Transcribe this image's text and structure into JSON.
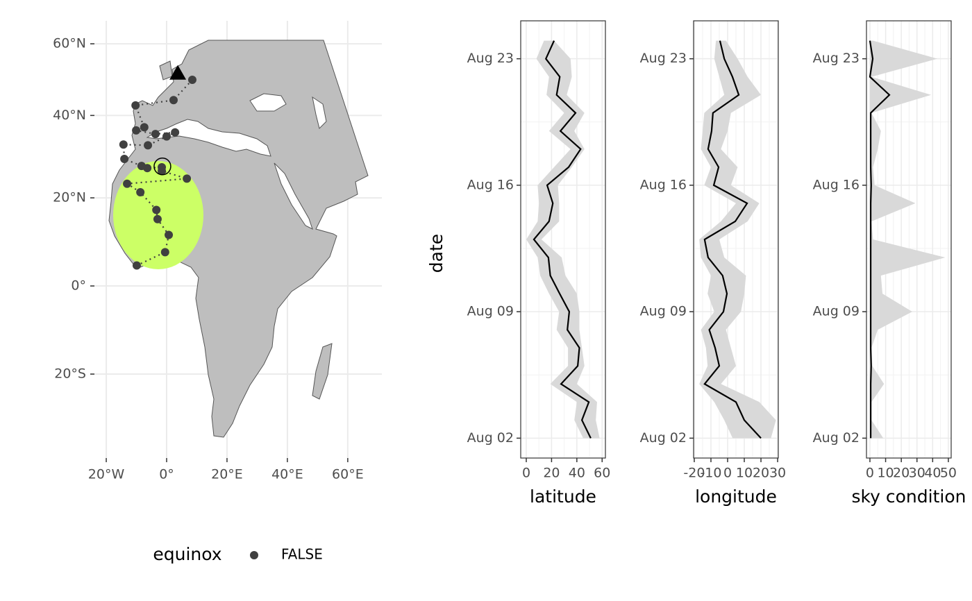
{
  "chart_data": [
    {
      "type": "map",
      "legend_title": "equinox",
      "series": [
        {
          "name": "FALSE",
          "color": "#404040",
          "x": [
            8.5,
            2.3,
            -10.3,
            -7.4,
            -10.1,
            -3.7,
            2.8,
            0,
            -6.2,
            -14.3,
            -14,
            -8.3,
            -6.4,
            -1.6,
            -1.6,
            6.7,
            -13.1,
            -8.7,
            -3.4,
            -3,
            0.7,
            -0.5,
            -9.9
          ],
          "y": [
            49.5,
            44,
            42.6,
            37,
            36.2,
            35.3,
            35.7,
            34.7,
            32.5,
            32.7,
            29.2,
            27.5,
            27,
            27.2,
            26.3,
            24.5,
            23.3,
            21.3,
            17.2,
            15.1,
            11.5,
            7.6,
            4.6
          ]
        }
      ],
      "triangle": {
        "x": 3.7,
        "y": 51.3
      },
      "circle": {
        "x": -1.4,
        "y": 27.4
      },
      "xlim": [
        -25.3,
        71.3
      ],
      "ylim": [
        -40.4,
        67.4
      ],
      "xticks": [
        {
          "value": -20,
          "label": "20°W"
        },
        {
          "value": 0,
          "label": "0°"
        },
        {
          "value": 20,
          "label": "20°E"
        },
        {
          "value": 40,
          "label": "40°E"
        },
        {
          "value": 60,
          "label": "60°E"
        }
      ],
      "yticks": [
        {
          "value": -20,
          "label": "20°S"
        },
        {
          "value": 0,
          "label": "0°"
        },
        {
          "value": 20,
          "label": "20°N"
        },
        {
          "value": 40,
          "label": "40°N"
        },
        {
          "value": 60,
          "label": "60°N"
        }
      ],
      "grid": true
    },
    {
      "type": "line",
      "xlabel": "latitude",
      "ylabel": "date",
      "y": [
        "Aug 02",
        "Aug 03",
        "Aug 04",
        "Aug 05",
        "Aug 06",
        "Aug 07",
        "Aug 08",
        "Aug 09",
        "Aug 10",
        "Aug 11",
        "Aug 12",
        "Aug 13",
        "Aug 14",
        "Aug 15",
        "Aug 16",
        "Aug 17",
        "Aug 18",
        "Aug 19",
        "Aug 20",
        "Aug 21",
        "Aug 22",
        "Aug 23",
        "Aug 24"
      ],
      "values": [
        51,
        44,
        49.5,
        27.5,
        40.7,
        42,
        32.5,
        34,
        26.4,
        19,
        17.5,
        6,
        18,
        21,
        16.5,
        33.5,
        43,
        27,
        39,
        24,
        26.5,
        15.5,
        22
      ],
      "lower": [
        45,
        38,
        40,
        19,
        33,
        33,
        24,
        26,
        18,
        11,
        9,
        0,
        9,
        10,
        9,
        22,
        35,
        18,
        30,
        16,
        18,
        8,
        14
      ],
      "upper": [
        58,
        55,
        56,
        40,
        46,
        44,
        42,
        42,
        40,
        31,
        28,
        12,
        26,
        26,
        25,
        36,
        46,
        38,
        46,
        32,
        36,
        35,
        22
      ],
      "color": "#000000",
      "band_color": "#d9d9d9",
      "xlim": [
        -4.4,
        62.6
      ],
      "xticks": [
        0,
        20,
        40,
        60
      ],
      "ylim": [
        "Aug 02",
        "Aug 24"
      ],
      "yticks": [
        "Aug 02",
        "Aug 09",
        "Aug 16",
        "Aug 23"
      ],
      "grid": true
    },
    {
      "type": "line",
      "xlabel": "longitude",
      "y": [
        "Aug 02",
        "Aug 03",
        "Aug 04",
        "Aug 05",
        "Aug 06",
        "Aug 07",
        "Aug 08",
        "Aug 09",
        "Aug 10",
        "Aug 11",
        "Aug 12",
        "Aug 13",
        "Aug 14",
        "Aug 15",
        "Aug 16",
        "Aug 17",
        "Aug 18",
        "Aug 19",
        "Aug 20",
        "Aug 21",
        "Aug 22",
        "Aug 23",
        "Aug 24"
      ],
      "values": [
        20,
        10,
        5,
        -13.8,
        -5,
        -7.5,
        -11,
        -2.5,
        -0.4,
        -3,
        -11.7,
        -13.8,
        4.6,
        11.7,
        -8.3,
        -5.4,
        -11.7,
        -9.6,
        -8.8,
        6.7,
        2.9,
        -2,
        -4.6
      ],
      "lower": [
        3,
        -2,
        -8,
        -17,
        -12,
        -13,
        -16,
        -8,
        -12,
        -10,
        -16,
        -17,
        -4,
        5,
        -14,
        -10,
        -16,
        -15,
        -14,
        -2,
        -5,
        -8,
        -7
      ],
      "upper": [
        26,
        29,
        19,
        -4,
        5,
        2,
        -1,
        8,
        10,
        11,
        -2,
        -5,
        12,
        19,
        2,
        6,
        -4,
        0,
        2,
        20,
        12,
        6,
        -1
      ],
      "color": "#000000",
      "band_color": "#d9d9d9",
      "xlim": [
        -20.4,
        30.4
      ],
      "xticks": [
        -20,
        -10,
        0,
        10,
        20,
        30
      ],
      "ylim": [
        "Aug 02",
        "Aug 24"
      ],
      "yticks": [
        "Aug 02",
        "Aug 09",
        "Aug 16",
        "Aug 23"
      ],
      "grid": true
    },
    {
      "type": "line",
      "xlabel": "sky condition",
      "y": [
        "Aug 02",
        "Aug 03",
        "Aug 04",
        "Aug 05",
        "Aug 06",
        "Aug 07",
        "Aug 08",
        "Aug 09",
        "Aug 10",
        "Aug 11",
        "Aug 12",
        "Aug 13",
        "Aug 14",
        "Aug 15",
        "Aug 16",
        "Aug 17",
        "Aug 18",
        "Aug 19",
        "Aug 20",
        "Aug 21",
        "Aug 22",
        "Aug 23",
        "Aug 24"
      ],
      "values": [
        0.5,
        0.5,
        0.5,
        0.5,
        0.8,
        0.5,
        0.5,
        0.5,
        0.5,
        0.5,
        0.5,
        0.5,
        0.5,
        0.5,
        0.8,
        0.5,
        0.5,
        0.5,
        0.5,
        12.4,
        0,
        1.8,
        0
      ],
      "lower": [
        0,
        0,
        0,
        0,
        0,
        0,
        0,
        0,
        0,
        0,
        0,
        0,
        0,
        0,
        0,
        0,
        0,
        0,
        0,
        0,
        0,
        0,
        0
      ],
      "upper": [
        8.5,
        1,
        1,
        9,
        1.5,
        1,
        5,
        27,
        8,
        7,
        48,
        2,
        1,
        29,
        3,
        2,
        5,
        7,
        1,
        39,
        1,
        43,
        2
      ],
      "color": "#000000",
      "band_color": "#d9d9d9",
      "xlim": [
        -2.2,
        51.8
      ],
      "xticks": [
        0,
        10,
        20,
        30,
        40,
        50
      ],
      "ylim": [
        "Aug 02",
        "Aug 24"
      ],
      "yticks": [
        "Aug 02",
        "Aug 09",
        "Aug 16",
        "Aug 23"
      ],
      "grid": true
    }
  ]
}
